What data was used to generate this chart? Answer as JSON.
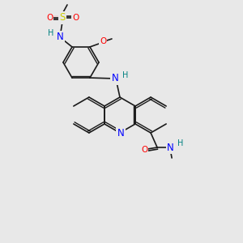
{
  "bg_color": "#e8e8e8",
  "bond_color": "#1a1a1a",
  "atom_colors": {
    "N": "#0000ff",
    "O": "#ff0000",
    "S": "#cccc00",
    "H": "#008080",
    "C": "#1a1a1a"
  },
  "font_size": 7.5,
  "line_width": 1.2
}
